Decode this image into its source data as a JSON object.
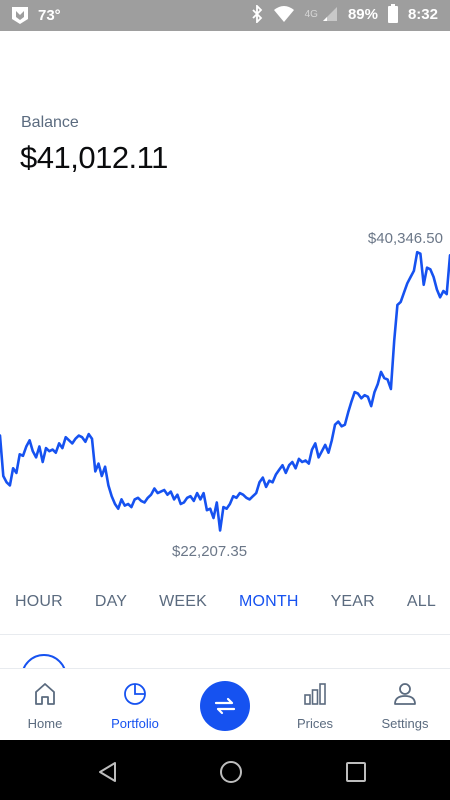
{
  "status_bar": {
    "temperature": "73°",
    "network": "4G",
    "battery": "89%",
    "time": "8:32",
    "icons": [
      "app-logo-icon",
      "bluetooth-icon",
      "wifi-icon",
      "signal-icon",
      "battery-icon"
    ]
  },
  "balance": {
    "label": "Balance",
    "value": "$41,012.11"
  },
  "chart_data": {
    "type": "line",
    "high_label": "$40,346.50",
    "low_label": "$22,207.35",
    "ylim": [
      22207.35,
      40346.5
    ],
    "color": "#1652f0",
    "series": [
      {
        "values": [
          28600,
          26000,
          25600,
          25400,
          26500,
          26200,
          27400,
          27300,
          27900,
          28300,
          27600,
          27200,
          27900,
          26900,
          27800,
          27600,
          27700,
          27500,
          28100,
          27800,
          28500,
          28300,
          28100,
          28400,
          28600,
          28500,
          28200,
          28700,
          28400,
          26300,
          26800,
          26000,
          26600,
          25400,
          24700,
          24200,
          23900,
          24500,
          24100,
          24200,
          24000,
          24500,
          24600,
          24400,
          24300,
          24600,
          24800,
          25200,
          24900,
          25000,
          25100,
          24800,
          25000,
          24500,
          24800,
          24200,
          24300,
          24600,
          24700,
          24400,
          24900,
          24500,
          24900,
          23800,
          23900,
          23300,
          24300,
          22500,
          24000,
          23900,
          24200,
          24700,
          24600,
          24900,
          24800,
          24600,
          24500,
          24700,
          24900,
          25600,
          25900,
          25300,
          25700,
          25600,
          26100,
          26400,
          26700,
          26200,
          26700,
          26900,
          26500,
          27100,
          26900,
          27000,
          26800,
          27700,
          28100,
          27200,
          27600,
          28000,
          27500,
          28300,
          29300,
          29500,
          29200,
          29300,
          30100,
          30800,
          31400,
          31300,
          31000,
          31200,
          31100,
          30500,
          31400,
          31900,
          32700,
          32300,
          32200,
          31600,
          34700,
          37000,
          37200,
          37800,
          38400,
          38800,
          39200,
          40400,
          40300,
          38300,
          39400,
          39300,
          38800,
          38000,
          37500,
          37900,
          37700,
          40200
        ]
      }
    ]
  },
  "range_tabs": {
    "hour": "HOUR",
    "day": "DAY",
    "week": "WEEK",
    "month": "MONTH",
    "year": "YEAR",
    "all": "ALL",
    "active": "MONTH"
  },
  "bottom_nav": {
    "home": "Home",
    "portfolio": "Portfolio",
    "prices": "Prices",
    "settings": "Settings",
    "active": "Portfolio"
  },
  "colors": {
    "accent": "#1652f0",
    "text_muted": "#5b6b7f",
    "text_primary": "#0a0b0d",
    "status_bar": "#9e9e9e"
  }
}
